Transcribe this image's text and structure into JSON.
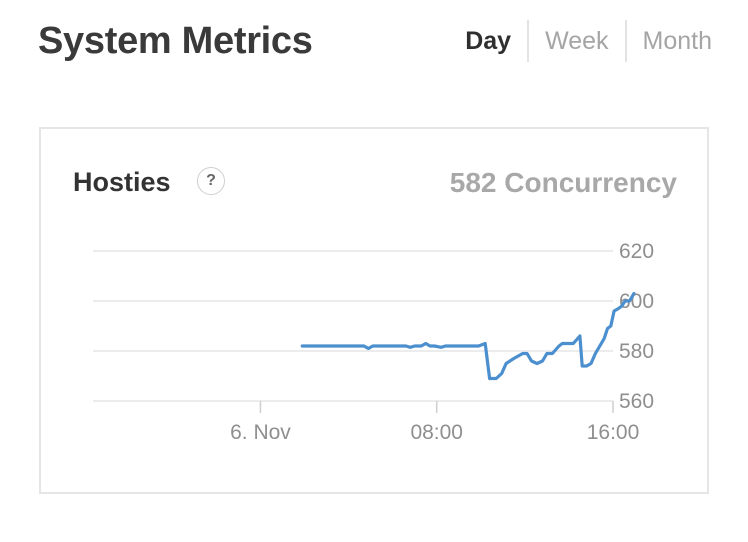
{
  "header": {
    "title": "System Metrics",
    "tabs": [
      {
        "label": "Day",
        "active": true
      },
      {
        "label": "Week",
        "active": false
      },
      {
        "label": "Month",
        "active": false
      }
    ]
  },
  "card": {
    "title": "Hosties",
    "help_glyph": "?",
    "value_text": "582 Concurrency"
  },
  "colors": {
    "line": "#4b8fcf",
    "grid": "#e6e6e6",
    "tick_text": "#8f8f8f"
  },
  "chart_data": {
    "type": "line",
    "title": "",
    "xlabel": "",
    "ylabel": "",
    "x_ticks": [
      {
        "label": "6. Nov",
        "t": 0
      },
      {
        "label": "08:00",
        "t": 8
      },
      {
        "label": "16:00",
        "t": 16
      }
    ],
    "y_ticks": [
      620,
      600,
      580,
      560
    ],
    "xlim": [
      -7.6,
      16.0
    ],
    "ylim": [
      560,
      620
    ],
    "grid": true,
    "legend": "none",
    "series": [
      {
        "name": "",
        "points": [
          [
            1.9,
            582
          ],
          [
            2.4,
            582
          ],
          [
            3.0,
            582
          ],
          [
            3.6,
            582
          ],
          [
            4.2,
            582
          ],
          [
            4.7,
            582
          ],
          [
            4.9,
            581
          ],
          [
            5.1,
            582
          ],
          [
            5.6,
            582
          ],
          [
            6.2,
            582
          ],
          [
            6.6,
            582
          ],
          [
            6.8,
            581.5
          ],
          [
            7.0,
            582
          ],
          [
            7.3,
            582
          ],
          [
            7.5,
            583
          ],
          [
            7.7,
            582
          ],
          [
            7.9,
            582
          ],
          [
            8.2,
            581.5
          ],
          [
            8.4,
            582
          ],
          [
            9.0,
            582
          ],
          [
            9.5,
            582
          ],
          [
            9.9,
            582
          ],
          [
            10.2,
            583
          ],
          [
            10.4,
            569
          ],
          [
            10.7,
            569
          ],
          [
            10.95,
            571
          ],
          [
            11.15,
            575
          ],
          [
            11.5,
            577
          ],
          [
            11.9,
            579
          ],
          [
            12.1,
            579
          ],
          [
            12.3,
            576
          ],
          [
            12.55,
            575
          ],
          [
            12.8,
            576
          ],
          [
            13.0,
            579
          ],
          [
            13.25,
            579
          ],
          [
            13.55,
            582
          ],
          [
            13.7,
            583
          ],
          [
            14.2,
            583
          ],
          [
            14.5,
            586
          ],
          [
            14.6,
            574
          ],
          [
            14.8,
            574
          ],
          [
            15.0,
            575
          ],
          [
            15.2,
            579
          ],
          [
            15.4,
            582
          ],
          [
            15.6,
            585
          ],
          [
            15.75,
            589
          ],
          [
            15.9,
            590
          ],
          [
            16.05,
            596
          ],
          [
            16.25,
            597
          ],
          [
            16.4,
            598
          ],
          [
            16.55,
            600
          ],
          [
            16.75,
            600
          ],
          [
            16.95,
            603
          ]
        ]
      }
    ]
  }
}
